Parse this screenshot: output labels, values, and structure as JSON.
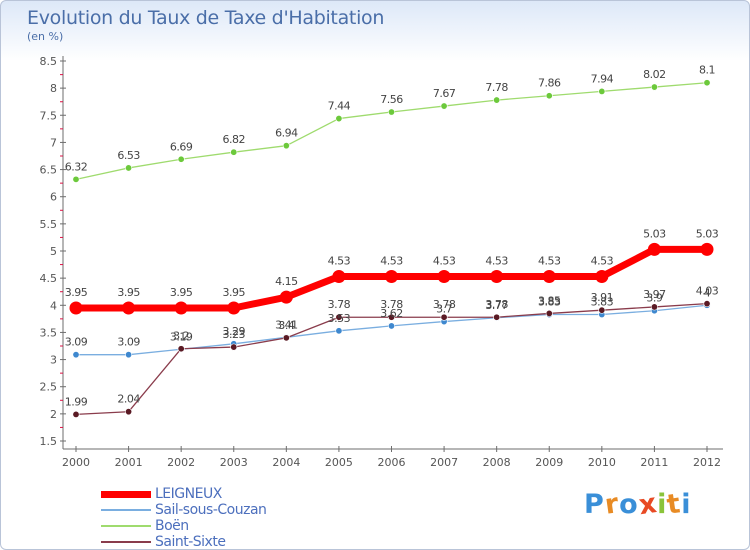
{
  "header": {
    "title": "Evolution du Taux de Taxe d'Habitation",
    "subtitle": "(en %)"
  },
  "brand": {
    "letters": [
      "P",
      "r",
      "o",
      "x",
      "i",
      "t",
      "i"
    ],
    "colors": [
      "#3a8fd8",
      "#e88b24",
      "#3a8fd8",
      "#e84a24",
      "#8ac43a",
      "#e88b24",
      "#3a8fd8"
    ]
  },
  "chart_data": {
    "type": "line",
    "title": "Evolution du Taux de Taxe d'Habitation",
    "ylabel": "(en %)",
    "xlabel": "",
    "x": [
      "2000",
      "2001",
      "2002",
      "2003",
      "2004",
      "2005",
      "2006",
      "2007",
      "2008",
      "2009",
      "2010",
      "2011",
      "2012"
    ],
    "ylim": [
      1.5,
      8.5
    ],
    "yticks": [
      "1.5",
      "2",
      "2.5",
      "3",
      "3.5",
      "4",
      "4.5",
      "5",
      "5.5",
      "6",
      "6.5",
      "7",
      "7.5",
      "8",
      "8.5"
    ],
    "grid": false,
    "legend": "bottom-left",
    "series": [
      {
        "name": "LEIGNEUX",
        "color": "#ff0000",
        "marker": "#ff0000",
        "values": [
          3.95,
          3.95,
          3.95,
          3.95,
          4.15,
          4.53,
          4.53,
          4.53,
          4.53,
          4.53,
          4.53,
          5.03,
          5.03
        ],
        "labels": [
          "3.95",
          "3.95",
          "3.95",
          "3.95",
          "4.15",
          "4.53",
          "4.53",
          "4.53",
          "4.53",
          "4.53",
          "4.53",
          "5.03",
          "5.03"
        ]
      },
      {
        "name": "Sail-sous-Couzan",
        "color": "#7aaee0",
        "marker": "#3e88cf",
        "values": [
          3.09,
          3.09,
          3.19,
          3.29,
          3.41,
          3.53,
          3.62,
          3.7,
          3.77,
          3.83,
          3.83,
          3.9,
          4.0
        ],
        "labels": [
          "3.09",
          "3.09",
          "3.19",
          "3.29",
          "3.41",
          "3.53",
          "3.62",
          "3.7",
          "3.77",
          "3.83",
          "3.83",
          "3.9",
          "4"
        ]
      },
      {
        "name": "Boën",
        "color": "#9fdb6e",
        "marker": "#6cc93b",
        "values": [
          6.32,
          6.53,
          6.69,
          6.82,
          6.94,
          7.44,
          7.56,
          7.67,
          7.78,
          7.86,
          7.94,
          8.02,
          8.1
        ],
        "labels": [
          "6.32",
          "6.53",
          "6.69",
          "6.82",
          "6.94",
          "7.44",
          "7.56",
          "7.67",
          "7.78",
          "7.86",
          "7.94",
          "8.02",
          "8.1"
        ]
      },
      {
        "name": "Saint-Sixte",
        "color": "#8a3c4c",
        "marker": "#5a1a24",
        "values": [
          1.99,
          2.04,
          3.2,
          3.23,
          3.4,
          3.78,
          3.78,
          3.78,
          3.78,
          3.85,
          3.91,
          3.97,
          4.03
        ],
        "labels": [
          "1.99",
          "2.04",
          "3.2",
          "3.23",
          "3.4",
          "3.78",
          "3.78",
          "3.78",
          "3.78",
          "3.85",
          "3.91",
          "3.97",
          "4.03"
        ]
      }
    ]
  }
}
